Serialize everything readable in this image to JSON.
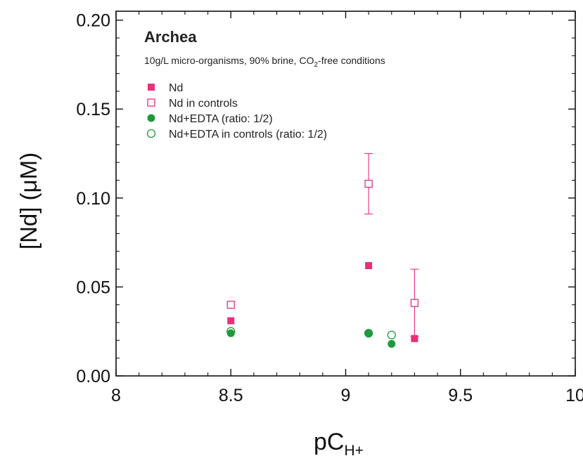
{
  "chart_data": {
    "type": "scatter",
    "title": "Archea",
    "subtitle": {
      "before": "10g/L micro-organisms, 90% brine, CO",
      "sub": "2",
      "after": "-free conditions"
    },
    "xlabel": {
      "main": "pC",
      "sub": "H+"
    },
    "ylabel": "[Nd]  (μM)",
    "xlim": [
      8,
      10
    ],
    "ylim": [
      0,
      0.205
    ],
    "x_ticks": [
      {
        "value": 8,
        "label": "8"
      },
      {
        "value": 8.5,
        "label": "8.5"
      },
      {
        "value": 9,
        "label": "9"
      },
      {
        "value": 9.5,
        "label": "9.5"
      },
      {
        "value": 10,
        "label": "10"
      }
    ],
    "y_ticks": [
      {
        "value": 0,
        "label": "0.00"
      },
      {
        "value": 0.05,
        "label": "0.05"
      },
      {
        "value": 0.1,
        "label": "0.10"
      },
      {
        "value": 0.15,
        "label": "0.15"
      },
      {
        "value": 0.2,
        "label": "0.20"
      }
    ],
    "grid": false,
    "legend_position": "top-left",
    "series": [
      {
        "name": "Nd",
        "marker": "square-filled",
        "color": "#e8307a",
        "points": [
          {
            "x": 8.5,
            "y": 0.031
          },
          {
            "x": 9.1,
            "y": 0.062
          },
          {
            "x": 9.3,
            "y": 0.021
          }
        ]
      },
      {
        "name": "Nd in controls",
        "marker": "square-open",
        "color": "#e8307a",
        "points": [
          {
            "x": 8.5,
            "y": 0.04
          },
          {
            "x": 9.1,
            "y": 0.108,
            "err": 0.017
          },
          {
            "x": 9.3,
            "y": 0.041,
            "err": 0.019
          }
        ]
      },
      {
        "name": "Nd+EDTA (ratio: 1/2)",
        "marker": "circle-filled",
        "color": "#1e9a3c",
        "points": [
          {
            "x": 8.5,
            "y": 0.024
          },
          {
            "x": 9.1,
            "y": 0.024
          },
          {
            "x": 9.2,
            "y": 0.018
          }
        ]
      },
      {
        "name": "Nd+EDTA in controls (ratio: 1/2)",
        "marker": "circle-open",
        "color": "#1e9a3c",
        "points": [
          {
            "x": 8.5,
            "y": 0.025
          },
          {
            "x": 9.1,
            "y": 0.024
          },
          {
            "x": 9.2,
            "y": 0.023
          }
        ]
      }
    ]
  }
}
